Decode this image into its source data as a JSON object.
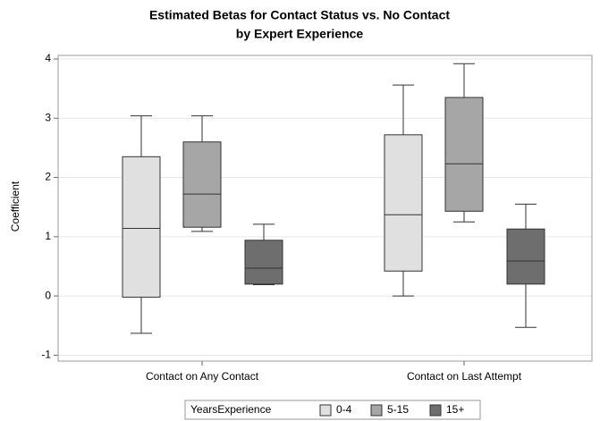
{
  "chart_data": {
    "type": "box",
    "title": "Estimated Betas for Contact Status vs. No Contact",
    "subtitle": "by Expert Experience",
    "y_label": "Coefficient",
    "categories": [
      "Contact on Any Contact",
      "Contact on Last Attempt"
    ],
    "legend_title": "YearsExperience",
    "series": [
      {
        "name": "0-4",
        "color": "#e0e0e0",
        "min": [
          -0.63,
          0.0
        ],
        "q1": [
          -0.02,
          0.42
        ],
        "median": [
          1.14,
          1.37
        ],
        "q3": [
          2.35,
          2.72
        ],
        "max": [
          3.04,
          3.56
        ]
      },
      {
        "name": "5-15",
        "color": "#a6a6a6",
        "min": [
          1.09,
          1.25
        ],
        "q1": [
          1.16,
          1.43
        ],
        "median": [
          1.72,
          2.23
        ],
        "q3": [
          2.6,
          3.35
        ],
        "max": [
          3.04,
          3.92
        ]
      },
      {
        "name": "15+",
        "color": "#6e6e6e",
        "min": [
          0.19,
          -0.53
        ],
        "q1": [
          0.2,
          0.2
        ],
        "median": [
          0.47,
          0.59
        ],
        "q3": [
          0.94,
          1.13
        ],
        "max": [
          1.21,
          1.55
        ]
      }
    ],
    "ylim": [
      -1.1,
      4.06
    ],
    "yticks": [
      -1,
      0,
      1,
      2,
      3,
      4
    ],
    "grid": true
  }
}
